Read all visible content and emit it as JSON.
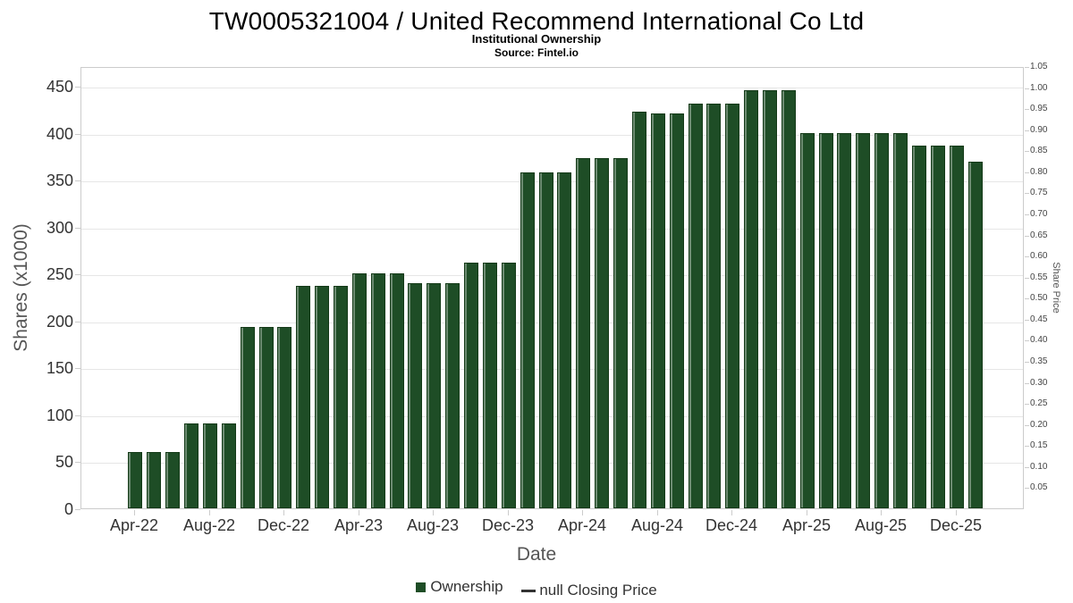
{
  "chart_data": {
    "type": "bar",
    "title": "TW0005321004 / United Recommend International Co Ltd",
    "subtitle": "Institutional Ownership",
    "source": "Source: Fintel.io",
    "xlabel": "Date",
    "ylabel": "Shares (x1000)",
    "y2label": "Share Price",
    "ylim": [
      0,
      471
    ],
    "y_ticks": [
      0,
      50,
      100,
      150,
      200,
      250,
      300,
      350,
      400,
      450
    ],
    "y2lim": [
      0,
      1.05
    ],
    "y2_ticks": [
      0.05,
      0.1,
      0.15,
      0.2,
      0.25,
      0.3,
      0.35,
      0.4,
      0.45,
      0.5,
      0.55,
      0.6,
      0.65,
      0.7,
      0.75,
      0.8,
      0.85,
      0.9,
      0.95,
      1.0,
      1.05
    ],
    "x_tick_labels": [
      "Apr-22",
      "Aug-22",
      "Dec-22",
      "Apr-23",
      "Aug-23",
      "Dec-23",
      "Apr-24",
      "Aug-24",
      "Dec-24",
      "Apr-25",
      "Aug-25",
      "Dec-25"
    ],
    "categories": [
      "Apr-22",
      "May-22",
      "Jun-22",
      "Jul-22",
      "Aug-22",
      "Sep-22",
      "Oct-22",
      "Nov-22",
      "Dec-22",
      "Jan-23",
      "Feb-23",
      "Mar-23",
      "Apr-23",
      "May-23",
      "Jun-23",
      "Jul-23",
      "Aug-23",
      "Sep-23",
      "Oct-23",
      "Nov-23",
      "Dec-23",
      "Jan-24",
      "Feb-24",
      "Mar-24",
      "Apr-24",
      "May-24",
      "Jun-24",
      "Jul-24",
      "Aug-24",
      "Sep-24",
      "Oct-24",
      "Nov-24",
      "Dec-24",
      "Jan-25",
      "Feb-25",
      "Mar-25",
      "Apr-25",
      "May-25",
      "Jun-25",
      "Jul-25",
      "Aug-25",
      "Sep-25",
      "Oct-25",
      "Nov-25",
      "Dec-25",
      "Jan-26"
    ],
    "series": [
      {
        "name": "Ownership",
        "values": [
          60,
          60,
          60,
          90,
          90,
          90,
          193,
          193,
          193,
          237,
          237,
          237,
          250,
          250,
          250,
          240,
          240,
          240,
          262,
          262,
          262,
          358,
          358,
          358,
          373,
          373,
          373,
          422,
          421,
          421,
          431,
          431,
          431,
          445,
          445,
          445,
          400,
          400,
          400,
          400,
          400,
          400,
          386,
          386,
          386,
          369
        ]
      },
      {
        "name": "null Closing Price",
        "values": []
      }
    ],
    "bar_color": "#1e4d26",
    "line_legend_color": "#333333",
    "grid": true,
    "legend_position": "bottom"
  },
  "legend": {
    "ownership": "Ownership",
    "closing_price": "null Closing Price"
  }
}
